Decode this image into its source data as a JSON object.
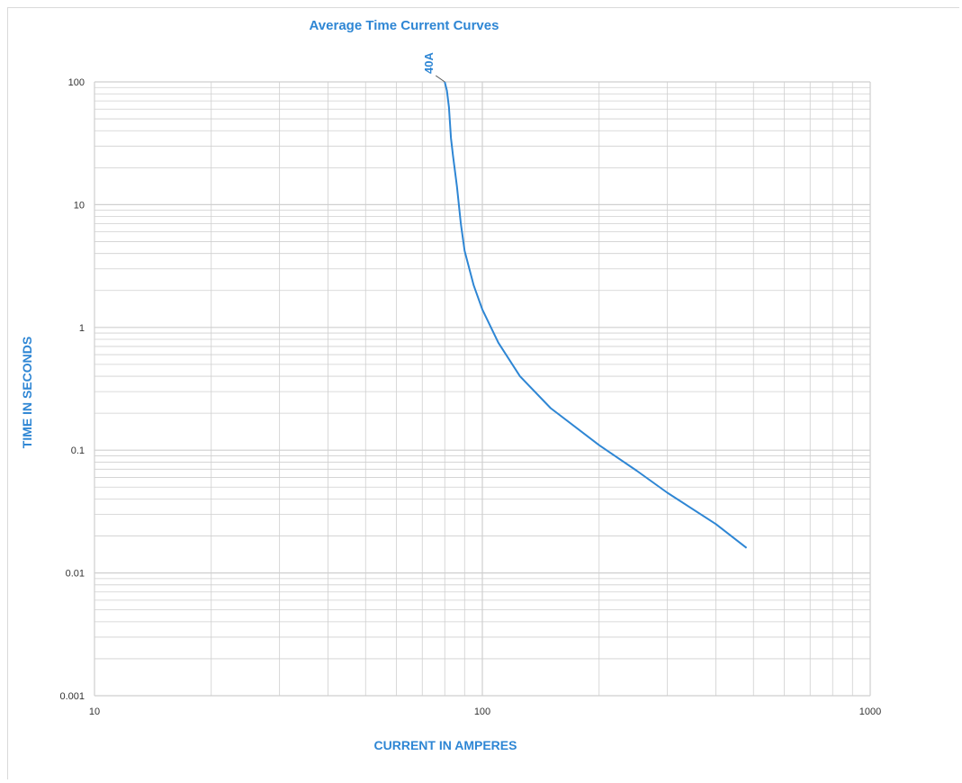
{
  "chart_data": {
    "type": "line",
    "title": "Average Time Current Curves",
    "xlabel": "CURRENT IN AMPERES",
    "ylabel": "TIME IN SECONDS",
    "x_scale": "log",
    "y_scale": "log",
    "xlim": [
      10,
      1000
    ],
    "ylim": [
      0.001,
      100
    ],
    "x_ticks": [
      "10",
      "100",
      "1000"
    ],
    "y_ticks": [
      "0.001",
      "0.01",
      "0.1",
      "1",
      "10",
      "100"
    ],
    "x_tick_values": [
      10,
      100,
      1000
    ],
    "y_tick_values": [
      0.001,
      0.01,
      0.1,
      1,
      10,
      100
    ],
    "grid": true,
    "colors": {
      "series": "#2e86d4",
      "title": "#2e86d4",
      "grid": "#cfcfcf"
    },
    "series": [
      {
        "name": "40A",
        "x": [
          80,
          81,
          82,
          83,
          84,
          86,
          88,
          90,
          95,
          100,
          110,
          125,
          150,
          200,
          250,
          300,
          400,
          480
        ],
        "y": [
          100,
          85,
          62,
          35,
          25,
          14,
          7,
          4.2,
          2.2,
          1.4,
          0.75,
          0.4,
          0.22,
          0.11,
          0.068,
          0.045,
          0.025,
          0.016
        ]
      }
    ]
  }
}
